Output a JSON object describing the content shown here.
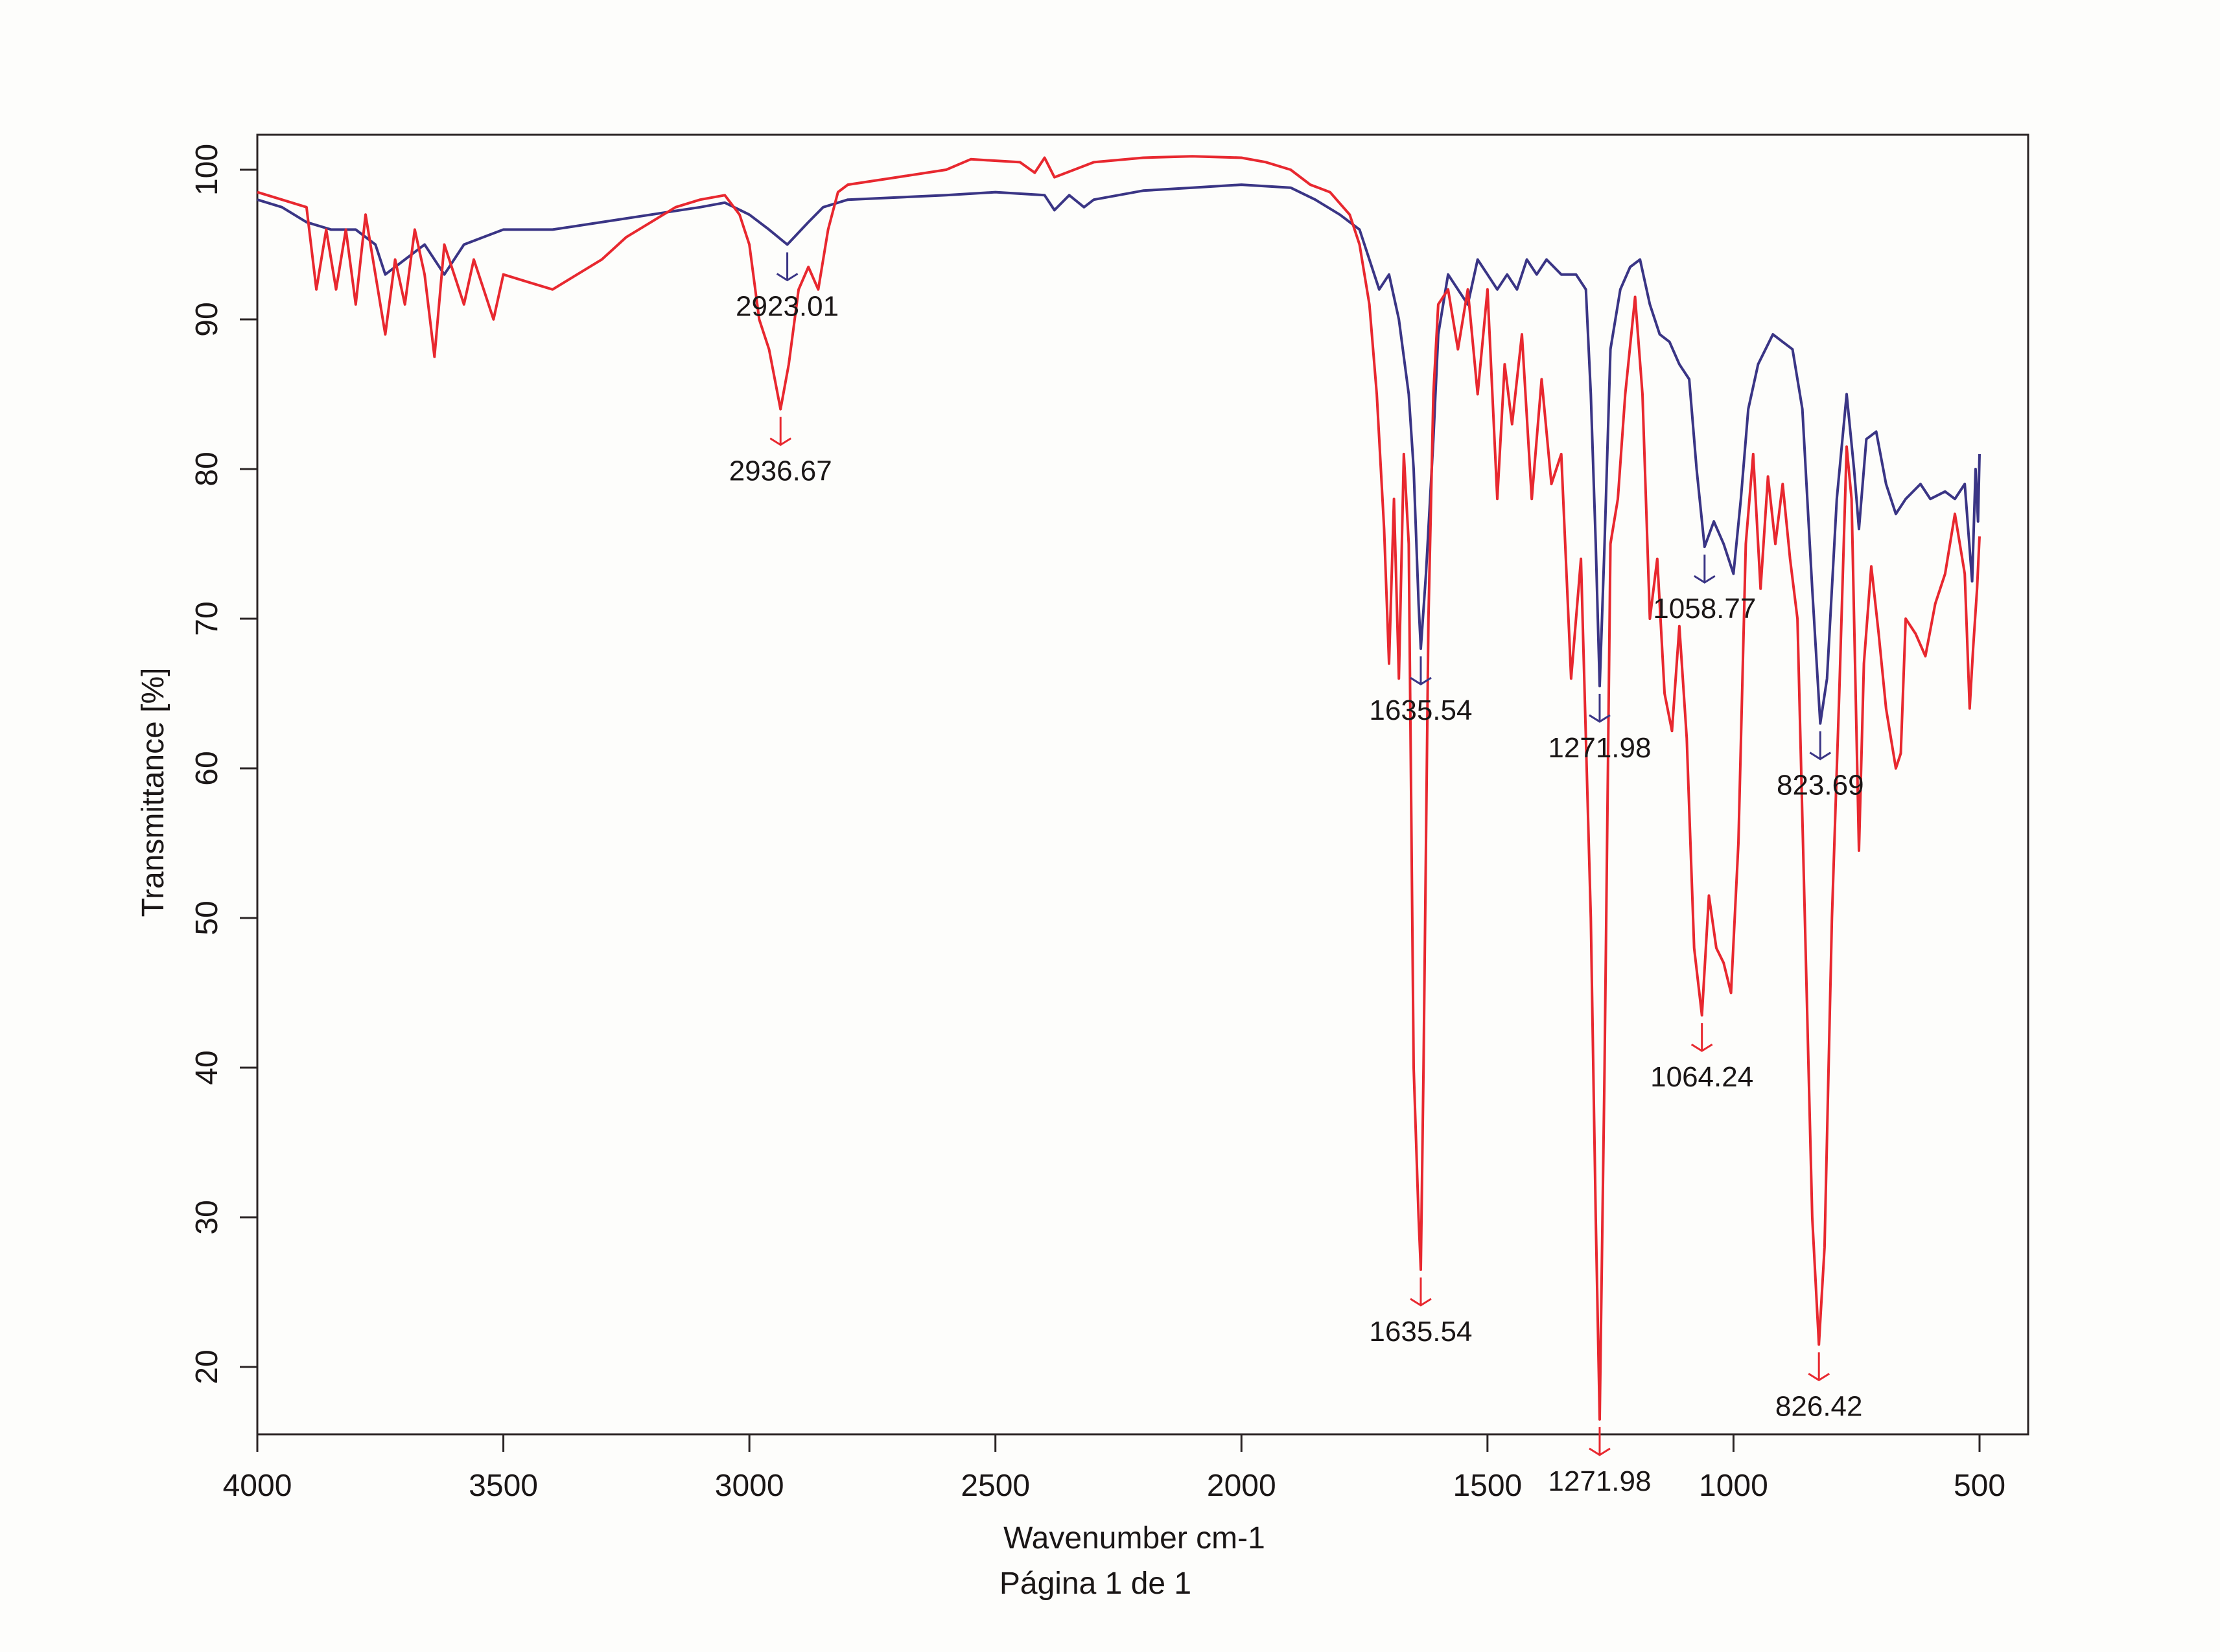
{
  "chart_data": {
    "type": "line",
    "title": "",
    "xlabel": "Wavenumber cm-1",
    "ylabel": "Transmittance [%]",
    "footer": "Página 1 de 1",
    "xlim": [
      4000,
      400
    ],
    "ylim": [
      15.5,
      102.3
    ],
    "x_ticks": [
      4000,
      3500,
      3000,
      2500,
      2000,
      1500,
      1000,
      500
    ],
    "x_tick_labels": [
      "4000",
      "3500",
      "3000",
      "2500",
      "2000",
      "1500",
      "1000",
      "500"
    ],
    "y_ticks": [
      20,
      30,
      40,
      50,
      60,
      70,
      80,
      90,
      100
    ],
    "y_tick_labels": [
      "20",
      "30",
      "40",
      "50",
      "60",
      "70",
      "80",
      "90",
      "100"
    ],
    "grid": false,
    "series": [
      {
        "name": "blue",
        "color": "#3a3585",
        "points": [
          [
            4000,
            98
          ],
          [
            3950,
            97.5
          ],
          [
            3900,
            96.5
          ],
          [
            3850,
            96
          ],
          [
            3800,
            96
          ],
          [
            3760,
            95
          ],
          [
            3740,
            93
          ],
          [
            3700,
            94
          ],
          [
            3660,
            95
          ],
          [
            3620,
            93
          ],
          [
            3580,
            95
          ],
          [
            3540,
            95.5
          ],
          [
            3500,
            96
          ],
          [
            3400,
            96
          ],
          [
            3300,
            96.5
          ],
          [
            3200,
            97
          ],
          [
            3100,
            97.5
          ],
          [
            3050,
            97.8
          ],
          [
            3000,
            97
          ],
          [
            2960,
            96
          ],
          [
            2923,
            95
          ],
          [
            2880,
            96.5
          ],
          [
            2850,
            97.5
          ],
          [
            2800,
            98
          ],
          [
            2600,
            98.3
          ],
          [
            2500,
            98.5
          ],
          [
            2400,
            98.3
          ],
          [
            2380,
            97.3
          ],
          [
            2350,
            98.3
          ],
          [
            2320,
            97.5
          ],
          [
            2300,
            98
          ],
          [
            2200,
            98.6
          ],
          [
            2100,
            98.8
          ],
          [
            2000,
            99
          ],
          [
            1900,
            98.8
          ],
          [
            1850,
            98
          ],
          [
            1800,
            97
          ],
          [
            1760,
            96
          ],
          [
            1740,
            94
          ],
          [
            1720,
            92
          ],
          [
            1700,
            93
          ],
          [
            1680,
            90
          ],
          [
            1660,
            85
          ],
          [
            1650,
            80
          ],
          [
            1640,
            71
          ],
          [
            1635.54,
            68
          ],
          [
            1625,
            73
          ],
          [
            1610,
            82
          ],
          [
            1600,
            89
          ],
          [
            1580,
            93
          ],
          [
            1560,
            92
          ],
          [
            1540,
            91
          ],
          [
            1520,
            94
          ],
          [
            1500,
            93
          ],
          [
            1480,
            92
          ],
          [
            1460,
            93
          ],
          [
            1440,
            92
          ],
          [
            1420,
            94
          ],
          [
            1400,
            93
          ],
          [
            1380,
            94
          ],
          [
            1350,
            93
          ],
          [
            1320,
            93
          ],
          [
            1300,
            92
          ],
          [
            1290,
            85
          ],
          [
            1280,
            75
          ],
          [
            1271.98,
            65.5
          ],
          [
            1262,
            75
          ],
          [
            1250,
            88
          ],
          [
            1230,
            92
          ],
          [
            1210,
            93.5
          ],
          [
            1190,
            94
          ],
          [
            1170,
            91
          ],
          [
            1150,
            89
          ],
          [
            1130,
            88.5
          ],
          [
            1110,
            87
          ],
          [
            1090,
            86
          ],
          [
            1075,
            80
          ],
          [
            1058.77,
            74.8
          ],
          [
            1040,
            76.5
          ],
          [
            1020,
            75
          ],
          [
            1000,
            73
          ],
          [
            985,
            78
          ],
          [
            970,
            84
          ],
          [
            950,
            87
          ],
          [
            920,
            89
          ],
          [
            900,
            88.5
          ],
          [
            880,
            88
          ],
          [
            860,
            84
          ],
          [
            840,
            72
          ],
          [
            823.69,
            63
          ],
          [
            810,
            66
          ],
          [
            790,
            78
          ],
          [
            770,
            85
          ],
          [
            755,
            80
          ],
          [
            745,
            76
          ],
          [
            730,
            82
          ],
          [
            710,
            82.5
          ],
          [
            690,
            79
          ],
          [
            670,
            77
          ],
          [
            650,
            78
          ],
          [
            620,
            79
          ],
          [
            600,
            78
          ],
          [
            570,
            78.5
          ],
          [
            550,
            78
          ],
          [
            530,
            79
          ],
          [
            515,
            72.5
          ],
          [
            508,
            80
          ],
          [
            503,
            76.5
          ],
          [
            500,
            81
          ]
        ]
      },
      {
        "name": "red",
        "color": "#e8282f",
        "points": [
          [
            4000,
            98.5
          ],
          [
            3950,
            98
          ],
          [
            3900,
            97.5
          ],
          [
            3880,
            92
          ],
          [
            3860,
            96
          ],
          [
            3840,
            92
          ],
          [
            3820,
            96
          ],
          [
            3800,
            91
          ],
          [
            3780,
            97
          ],
          [
            3760,
            93
          ],
          [
            3740,
            89
          ],
          [
            3720,
            94
          ],
          [
            3700,
            91
          ],
          [
            3680,
            96
          ],
          [
            3660,
            93
          ],
          [
            3640,
            87.5
          ],
          [
            3620,
            95
          ],
          [
            3600,
            93
          ],
          [
            3580,
            91
          ],
          [
            3560,
            94
          ],
          [
            3540,
            92
          ],
          [
            3520,
            90
          ],
          [
            3500,
            93
          ],
          [
            3450,
            92.5
          ],
          [
            3400,
            92
          ],
          [
            3350,
            93
          ],
          [
            3300,
            94
          ],
          [
            3250,
            95.5
          ],
          [
            3200,
            96.5
          ],
          [
            3150,
            97.5
          ],
          [
            3100,
            98
          ],
          [
            3050,
            98.3
          ],
          [
            3020,
            97
          ],
          [
            3000,
            95
          ],
          [
            2980,
            90
          ],
          [
            2960,
            88
          ],
          [
            2936.67,
            84
          ],
          [
            2920,
            87
          ],
          [
            2900,
            92
          ],
          [
            2880,
            93.5
          ],
          [
            2860,
            92
          ],
          [
            2840,
            96
          ],
          [
            2820,
            98.5
          ],
          [
            2800,
            99
          ],
          [
            2700,
            99.5
          ],
          [
            2600,
            100
          ],
          [
            2550,
            100.7
          ],
          [
            2450,
            100.5
          ],
          [
            2420,
            99.8
          ],
          [
            2400,
            100.8
          ],
          [
            2380,
            99.5
          ],
          [
            2300,
            100.5
          ],
          [
            2200,
            100.8
          ],
          [
            2100,
            100.9
          ],
          [
            2000,
            100.8
          ],
          [
            1950,
            100.5
          ],
          [
            1900,
            100
          ],
          [
            1860,
            99
          ],
          [
            1820,
            98.5
          ],
          [
            1780,
            97
          ],
          [
            1760,
            95
          ],
          [
            1740,
            91
          ],
          [
            1725,
            85
          ],
          [
            1710,
            76
          ],
          [
            1700,
            67
          ],
          [
            1690,
            78
          ],
          [
            1680,
            66
          ],
          [
            1670,
            81
          ],
          [
            1660,
            75
          ],
          [
            1650,
            40
          ],
          [
            1640,
            30
          ],
          [
            1635.54,
            26.5
          ],
          [
            1630,
            40
          ],
          [
            1620,
            70
          ],
          [
            1610,
            85
          ],
          [
            1600,
            91
          ],
          [
            1580,
            92
          ],
          [
            1560,
            88
          ],
          [
            1540,
            92
          ],
          [
            1520,
            85
          ],
          [
            1500,
            92
          ],
          [
            1480,
            78
          ],
          [
            1465,
            87
          ],
          [
            1450,
            83
          ],
          [
            1430,
            89
          ],
          [
            1410,
            78
          ],
          [
            1390,
            86
          ],
          [
            1370,
            79
          ],
          [
            1350,
            81
          ],
          [
            1330,
            66
          ],
          [
            1310,
            74
          ],
          [
            1290,
            50
          ],
          [
            1280,
            30
          ],
          [
            1271.98,
            16.5
          ],
          [
            1262,
            40
          ],
          [
            1250,
            75
          ],
          [
            1235,
            78
          ],
          [
            1220,
            85
          ],
          [
            1200,
            91.5
          ],
          [
            1185,
            85
          ],
          [
            1170,
            70
          ],
          [
            1155,
            74
          ],
          [
            1140,
            65
          ],
          [
            1125,
            62.5
          ],
          [
            1110,
            69.5
          ],
          [
            1095,
            62
          ],
          [
            1080,
            48
          ],
          [
            1064.24,
            43.5
          ],
          [
            1050,
            51.5
          ],
          [
            1035,
            48
          ],
          [
            1020,
            47
          ],
          [
            1005,
            45
          ],
          [
            990,
            55
          ],
          [
            975,
            75
          ],
          [
            960,
            81
          ],
          [
            945,
            72
          ],
          [
            930,
            79.5
          ],
          [
            915,
            75
          ],
          [
            900,
            79
          ],
          [
            885,
            74
          ],
          [
            870,
            70
          ],
          [
            855,
            50
          ],
          [
            840,
            30
          ],
          [
            826.42,
            21.5
          ],
          [
            815,
            28
          ],
          [
            800,
            50
          ],
          [
            785,
            65
          ],
          [
            770,
            81.5
          ],
          [
            760,
            78
          ],
          [
            745,
            54.5
          ],
          [
            735,
            67
          ],
          [
            720,
            73.5
          ],
          [
            705,
            69
          ],
          [
            690,
            64
          ],
          [
            670,
            60
          ],
          [
            660,
            61
          ],
          [
            650,
            70
          ],
          [
            630,
            69
          ],
          [
            610,
            67.5
          ],
          [
            590,
            71
          ],
          [
            570,
            73
          ],
          [
            550,
            77
          ],
          [
            530,
            73
          ],
          [
            520,
            64
          ],
          [
            513,
            68
          ],
          [
            505,
            72
          ],
          [
            500,
            75.5
          ]
        ]
      }
    ],
    "annotations": [
      {
        "series": "blue",
        "x": 2923.01,
        "y": 95,
        "label": "2923.01"
      },
      {
        "series": "red",
        "x": 2936.67,
        "y": 84,
        "label": "2936.67"
      },
      {
        "series": "blue",
        "x": 1635.54,
        "y": 68,
        "label": "1635.54"
      },
      {
        "series": "red",
        "x": 1635.54,
        "y": 26.5,
        "label": "1635.54"
      },
      {
        "series": "blue",
        "x": 1271.98,
        "y": 65.5,
        "label": "1271.98"
      },
      {
        "series": "red",
        "x": 1271.98,
        "y": 16.5,
        "label": "1271.98"
      },
      {
        "series": "blue",
        "x": 1058.77,
        "y": 74.8,
        "label": "1058.77"
      },
      {
        "series": "red",
        "x": 1064.24,
        "y": 43.5,
        "label": "1064.24"
      },
      {
        "series": "blue",
        "x": 823.69,
        "y": 63,
        "label": "823.69"
      },
      {
        "series": "red",
        "x": 826.42,
        "y": 21.5,
        "label": "826.42"
      }
    ]
  }
}
